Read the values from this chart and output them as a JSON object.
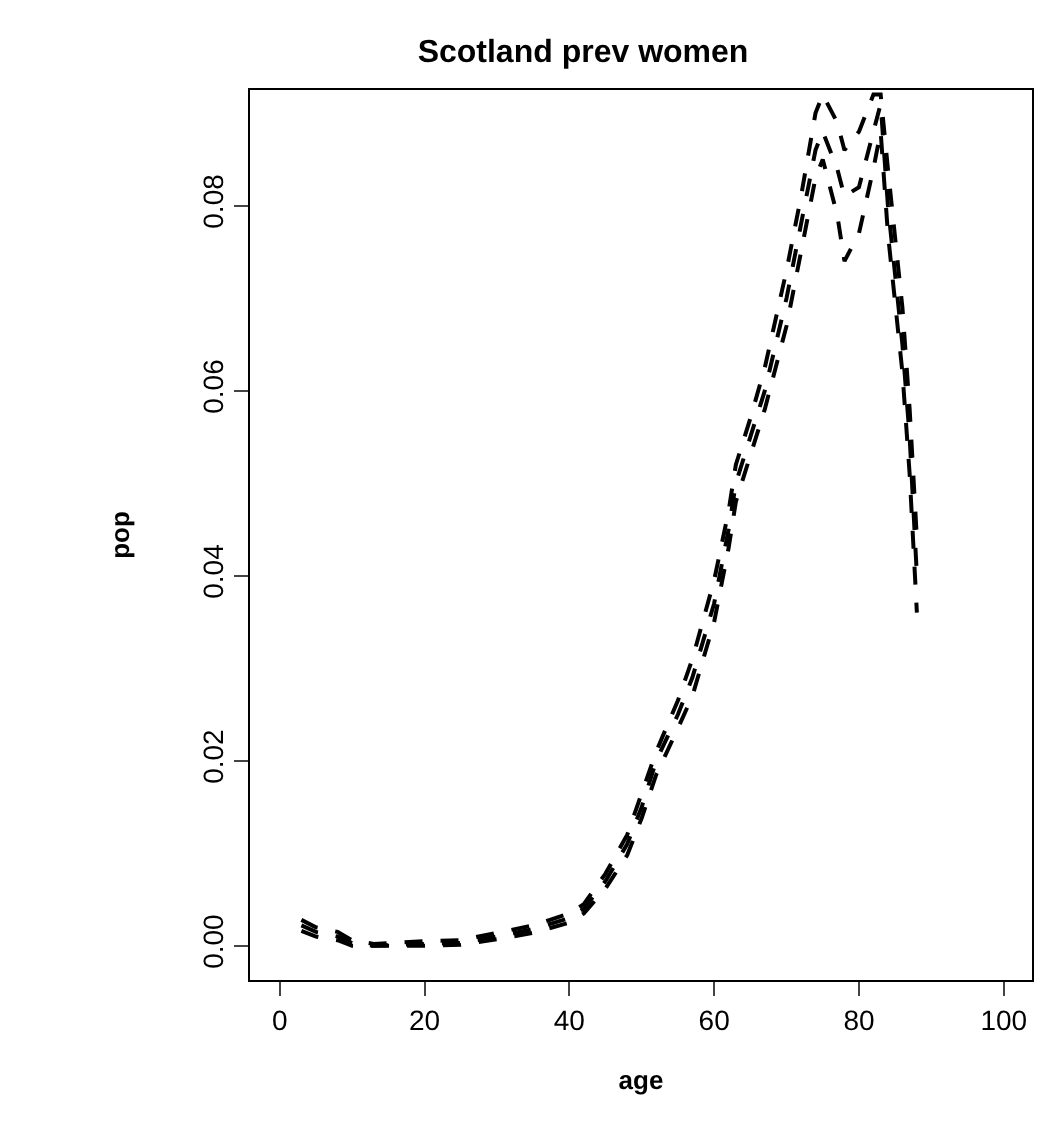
{
  "chart_data": {
    "type": "line",
    "title": "Scotland prev women",
    "xlabel": "age",
    "ylabel": "pop",
    "x": [
      3,
      5,
      8,
      10,
      13,
      20,
      25,
      30,
      35,
      40,
      42,
      45,
      48,
      50,
      52,
      55,
      57,
      60,
      62,
      63,
      65,
      67,
      70,
      72,
      74,
      75,
      77,
      78,
      80,
      82,
      83,
      84,
      86,
      87,
      88
    ],
    "series": [
      {
        "color": "#000000",
        "values": [
          0.0028,
          0.002,
          0.0015,
          0.0006,
          0.0002,
          0.0005,
          0.0006,
          0.0014,
          0.0022,
          0.0035,
          0.0045,
          0.0078,
          0.012,
          0.0165,
          0.021,
          0.0265,
          0.031,
          0.0395,
          0.047,
          0.052,
          0.057,
          0.0625,
          0.073,
          0.081,
          0.09,
          0.092,
          0.089,
          0.086,
          0.088,
          0.092,
          0.092,
          0.084,
          0.069,
          0.058,
          0.044
        ]
      },
      {
        "color": "#000000",
        "values": [
          0.0022,
          0.0015,
          0.001,
          0.0003,
          0.0,
          0.0002,
          0.0003,
          0.001,
          0.0018,
          0.003,
          0.004,
          0.007,
          0.011,
          0.015,
          0.02,
          0.025,
          0.029,
          0.037,
          0.045,
          0.05,
          0.055,
          0.06,
          0.07,
          0.078,
          0.086,
          0.088,
          0.084,
          0.081,
          0.082,
          0.088,
          0.091,
          0.08,
          0.065,
          0.055,
          0.04
        ]
      },
      {
        "color": "#000000",
        "values": [
          0.0016,
          0.001,
          0.0006,
          0.0,
          0.0,
          0.0,
          0.0001,
          0.0007,
          0.0014,
          0.0025,
          0.0035,
          0.0062,
          0.0098,
          0.0138,
          0.0185,
          0.0235,
          0.027,
          0.035,
          0.043,
          0.048,
          0.053,
          0.058,
          0.067,
          0.075,
          0.083,
          0.085,
          0.079,
          0.074,
          0.077,
          0.084,
          0.088,
          0.077,
          0.062,
          0.051,
          0.036
        ]
      }
    ],
    "xlim": [
      -4.1,
      103.9
    ],
    "xticks": [
      0,
      20,
      40,
      60,
      80,
      100
    ],
    "ylim": [
      -0.0037,
      0.0925
    ],
    "yticks": [
      {
        "value": 0,
        "label": "0.00"
      },
      {
        "value": 0.02,
        "label": "0.02"
      },
      {
        "value": 0.04,
        "label": "0.04"
      },
      {
        "value": 0.06,
        "label": "0.06"
      },
      {
        "value": 0.08,
        "label": "0.08"
      }
    ],
    "grid": false,
    "marker": "none",
    "line_style": "dashed"
  }
}
